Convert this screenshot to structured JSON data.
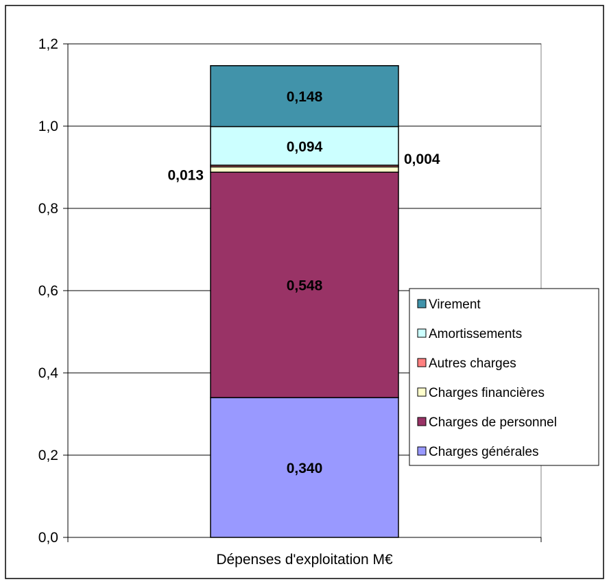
{
  "chart_data": {
    "type": "bar",
    "stacked": true,
    "categories": [
      "Dépenses d'exploitation M€"
    ],
    "series": [
      {
        "name": "Charges générales",
        "values": [
          0.34
        ],
        "color": "#9999FF",
        "label": "0,340"
      },
      {
        "name": "Charges de personnel",
        "values": [
          0.548
        ],
        "color": "#993366",
        "label": "0,548"
      },
      {
        "name": "Charges financières",
        "values": [
          0.013
        ],
        "color": "#FFFFCC",
        "label": "0,013"
      },
      {
        "name": "Autres charges",
        "values": [
          0.004
        ],
        "color": "#FF8080",
        "label": "0,004"
      },
      {
        "name": "Amortissements",
        "values": [
          0.094
        ],
        "color": "#CCFFFF",
        "label": "0,094"
      },
      {
        "name": "Virement",
        "values": [
          0.148
        ],
        "color": "#4193AA",
        "label": "0,148"
      }
    ],
    "legend_order": [
      "Virement",
      "Amortissements",
      "Autres charges",
      "Charges financières",
      "Charges de personnel",
      "Charges générales"
    ],
    "yticks": [
      "0,0",
      "0,2",
      "0,4",
      "0,6",
      "0,8",
      "1,0",
      "1,2"
    ],
    "ylim": [
      0,
      1.2
    ],
    "grid": true,
    "legend_position": "right"
  }
}
